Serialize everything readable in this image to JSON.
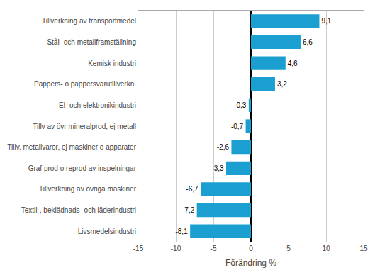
{
  "chart_data": {
    "type": "bar",
    "orientation": "horizontal",
    "categories": [
      "Livsmedelsindustri",
      "Textil-, beklädnads- och läderindustri",
      "Tillverkning av övriga maskiner",
      "Graf prod o reprod av inspelningar",
      "Tillv. metallvaror, ej maskiner o apparater",
      "Tillv av övr mineralprod, ej metall",
      "El- och elektronikindustri",
      "Pappers- o pappersvarutillverkn.",
      "Kemisk industri",
      "Stål- och metallframställning",
      "Tillverkning av transportmedel"
    ],
    "values": [
      -8.1,
      -7.2,
      -6.7,
      -3.3,
      -2.6,
      -0.7,
      -0.3,
      3.2,
      4.6,
      6.6,
      9.1
    ],
    "value_labels": [
      "-8,1",
      "-7,2",
      "-6,7",
      "-3,3",
      "-2,6",
      "-0,7",
      "-0,3",
      "3,2",
      "4,6",
      "6,6",
      "9,1"
    ],
    "data_labels": true,
    "color": "#1b9fd0",
    "xlabel": "Förändring %",
    "xlim": [
      -15,
      15
    ],
    "xticks": [
      -15,
      -10,
      -5,
      0,
      5,
      10,
      15
    ],
    "grid": true
  }
}
